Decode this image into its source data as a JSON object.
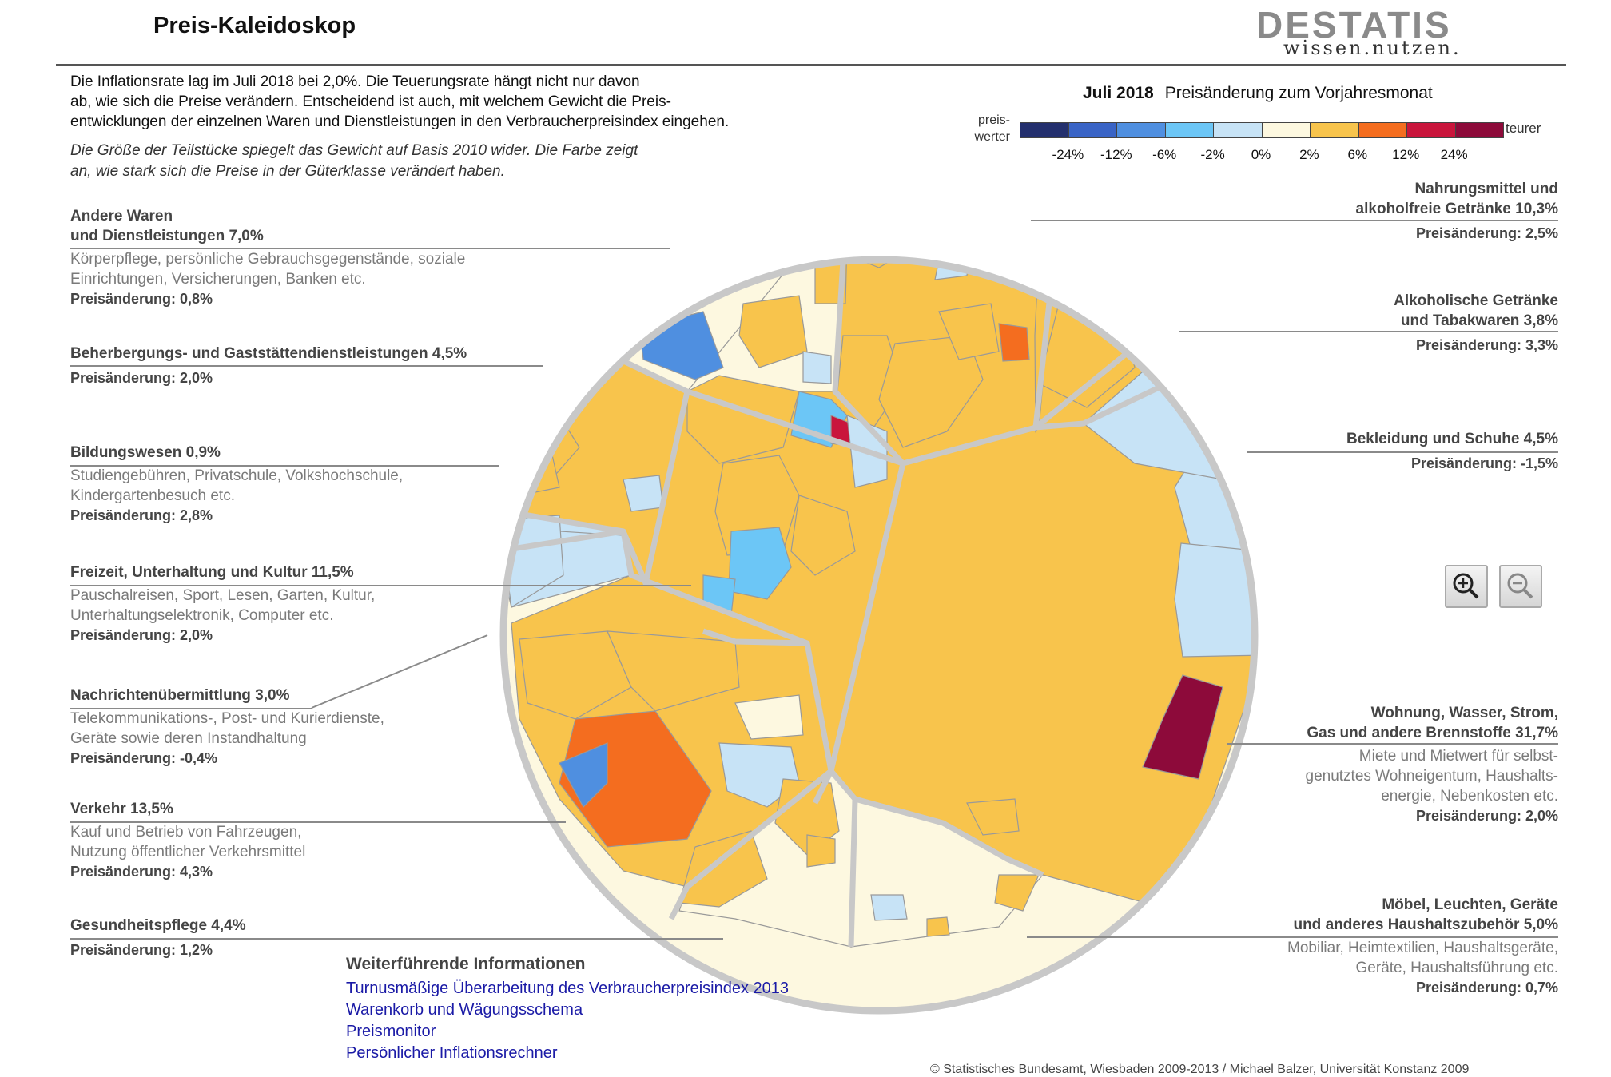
{
  "page": {
    "title": "Preis-Kaleidoskop"
  },
  "logo": {
    "wordmark": "DESTATIS",
    "tagline": "wissen.nutzen."
  },
  "intro": {
    "lines": [
      "Die Inflationsrate lag im Juli 2018 bei 2,0%. Die Teuerungsrate hängt nicht nur davon",
      "ab, wie sich die Preise verändern. Entscheidend ist auch, mit welchem Gewicht die Preis-",
      "entwicklungen der einzelnen Waren und Dienstleistungen in den Verbraucherpreisindex eingehen."
    ],
    "note_lines": [
      "Die Größe der Teilstücke spiegelt das Gewicht auf Basis 2010 wider. Die Farbe zeigt",
      "an, wie stark sich die Preise in der Güterklasse verändert haben."
    ]
  },
  "legend": {
    "month": "Juli 2018",
    "title": "Preisänderung zum Vorjahresmonat",
    "left_label_1": "preis-",
    "left_label_2": "werter",
    "right_label": "teurer",
    "colors": [
      "#24306e",
      "#3a64c6",
      "#4f8fe0",
      "#6cc6f6",
      "#c7e3f6",
      "#fdf8e0",
      "#f8c44c",
      "#f46d1f",
      "#c9153c",
      "#8d0a3a"
    ],
    "ticks": [
      "-24%",
      "-12%",
      "-6%",
      "-2%",
      "0%",
      "2%",
      "6%",
      "12%",
      "24%"
    ]
  },
  "chart_data": {
    "type": "voronoi-treemap",
    "title": "Juli 2018 Preisänderung zum Vorjahresmonat",
    "unit": "%",
    "categories": [
      {
        "name_lines": [
          "Nahrungsmittel und",
          "alkoholfreie Getränke 10,3%"
        ],
        "weight": 10.3,
        "change_label": "Preisänderung: 2,5%",
        "change": 2.5
      },
      {
        "name_lines": [
          "Alkoholische Getränke",
          "und Tabakwaren 3,8%"
        ],
        "weight": 3.8,
        "change_label": "Preisänderung: 3,3%",
        "change": 3.3
      },
      {
        "name_lines": [
          "Bekleidung und Schuhe 4,5%"
        ],
        "weight": 4.5,
        "change_label": "Preisänderung: -1,5%",
        "change": -1.5
      },
      {
        "name_lines": [
          "Wohnung, Wasser, Strom,",
          "Gas und andere Brennstoffe 31,7%"
        ],
        "weight": 31.7,
        "desc_lines": [
          "Miete und Mietwert für selbst-",
          "genutztes Wohneigentum, Haushalts-",
          "energie, Nebenkosten etc."
        ],
        "change_label": "Preisänderung: 2,0%",
        "change": 2.0
      },
      {
        "name_lines": [
          "Möbel, Leuchten, Geräte",
          "und anderes Haushaltszubehör 5,0%"
        ],
        "weight": 5.0,
        "desc_lines": [
          "Mobiliar, Heimtextilien, Haushaltsgeräte,",
          "Geräte, Haushaltsführung etc."
        ],
        "change_label": "Preisänderung: 0,7%",
        "change": 0.7
      },
      {
        "name_lines": [
          "Andere Waren",
          "und Dienstleistungen 7,0%"
        ],
        "weight": 7.0,
        "desc_lines": [
          "Körperpflege, persönliche Gebrauchsgegenstände, soziale",
          "Einrichtungen, Versicherungen, Banken etc."
        ],
        "change_label": "Preisänderung: 0,8%",
        "change": 0.8
      },
      {
        "name_lines": [
          "Beherbergungs- und Gaststättendienstleistungen 4,5%"
        ],
        "weight": 4.5,
        "change_label": "Preisänderung: 2,0%",
        "change": 2.0
      },
      {
        "name_lines": [
          "Bildungswesen 0,9%"
        ],
        "weight": 0.9,
        "desc_lines": [
          "Studiengebühren, Privatschule, Volkshochschule,",
          "Kindergartenbesuch etc."
        ],
        "change_label": "Preisänderung: 2,8%",
        "change": 2.8
      },
      {
        "name_lines": [
          "Freizeit, Unterhaltung und Kultur 11,5%"
        ],
        "weight": 11.5,
        "desc_lines": [
          "Pauschalreisen, Sport, Lesen, Garten, Kultur,",
          "Unterhaltungselektronik, Computer etc."
        ],
        "change_label": "Preisänderung: 2,0%",
        "change": 2.0
      },
      {
        "name_lines": [
          "Nachrichtenübermittlung 3,0%"
        ],
        "weight": 3.0,
        "desc_lines": [
          "Telekommunikations-, Post- und Kurierdienste,",
          "Geräte sowie deren Instandhaltung"
        ],
        "change_label": "Preisänderung: -0,4%",
        "change": -0.4
      },
      {
        "name_lines": [
          "Verkehr 13,5%"
        ],
        "weight": 13.5,
        "desc_lines": [
          "Kauf und Betrieb von Fahrzeugen,",
          "Nutzung öffentlicher Verkehrsmittel"
        ],
        "change_label": "Preisänderung: 4,3%",
        "change": 4.3
      },
      {
        "name_lines": [
          "Gesundheitspflege 4,4%"
        ],
        "weight": 4.4,
        "change_label": "Preisänderung: 1,2%",
        "change": 1.2
      }
    ]
  },
  "zoom": {
    "in_icon": "zoom-in-icon",
    "out_icon": "zoom-out-icon"
  },
  "more": {
    "title": "Weiterführende Informationen",
    "links": [
      "Turnusmäßige Überarbeitung des Verbraucherpreisindex 2013",
      "Warenkorb und Wägungsschema",
      "Preismonitor",
      "Persönlicher Inflationsrechner"
    ]
  },
  "footer": {
    "copyright": "© Statistisches Bundesamt, Wiesbaden 2009-2013 / Michael Balzer, Universität Konstanz 2009"
  }
}
